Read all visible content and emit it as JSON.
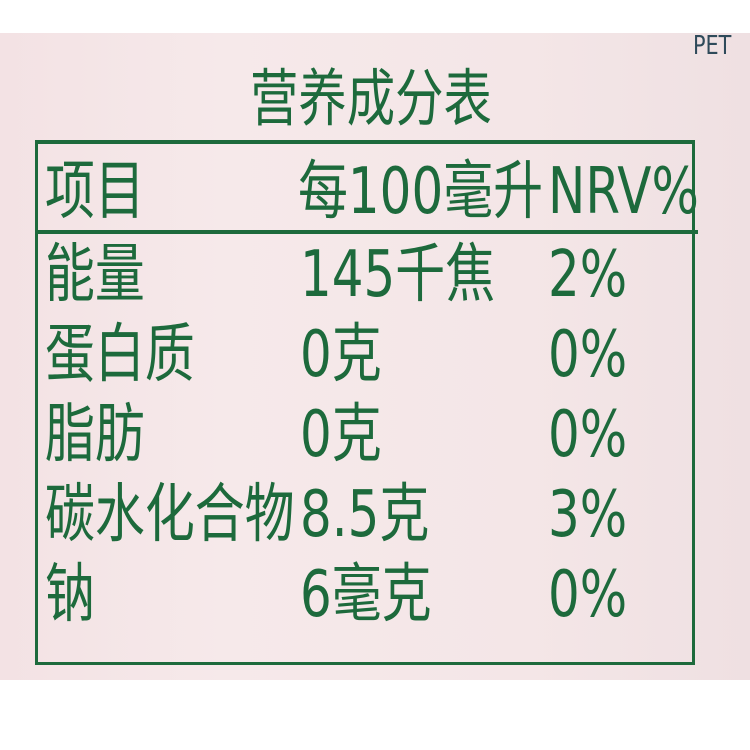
{
  "colors": {
    "ink": "#1d6a3c",
    "background": "#f5e7e9"
  },
  "corner_text": "PET",
  "title": "营养成分表",
  "header": {
    "item": "项目",
    "per": "每100毫升",
    "nrv": "NRV%"
  },
  "rows": [
    {
      "item": "能量",
      "value": "145千焦",
      "nrv": "2%"
    },
    {
      "item": "蛋白质",
      "value": "0克",
      "nrv": "0%"
    },
    {
      "item": "脂肪",
      "value": "0克",
      "nrv": "0%"
    },
    {
      "item": "碳水化合物",
      "value": "8.5克",
      "nrv": "3%"
    },
    {
      "item": "钠",
      "value": "6毫克",
      "nrv": "0%"
    }
  ]
}
